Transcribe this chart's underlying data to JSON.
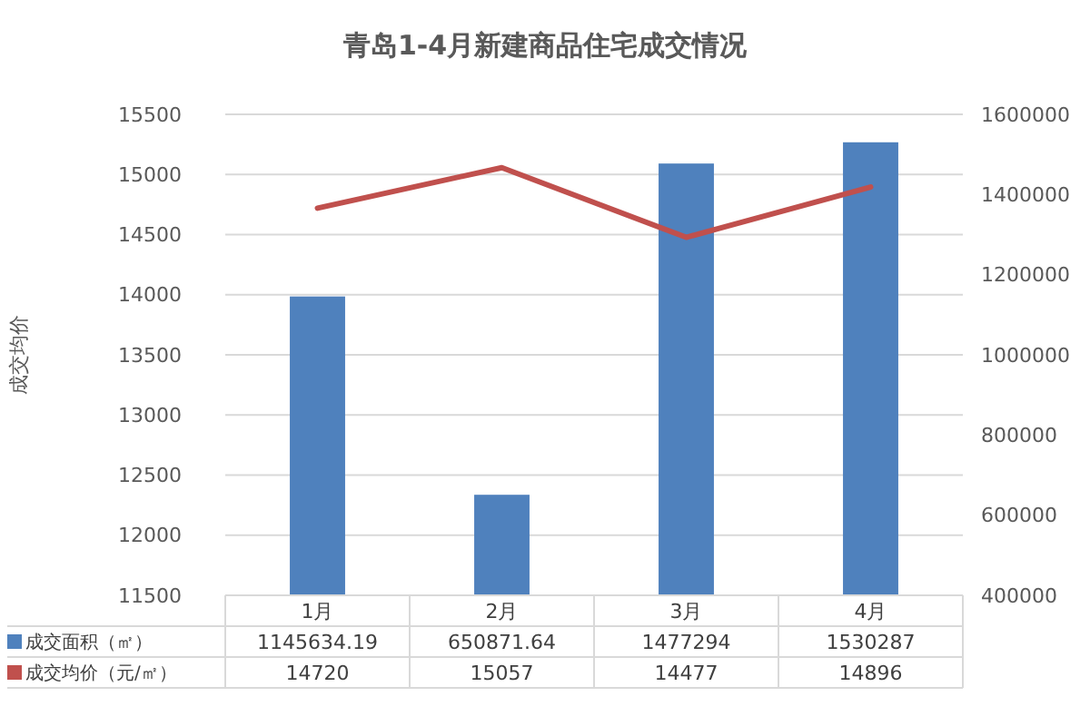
{
  "chart_data": {
    "type": "bar",
    "title": "青岛1-4月新建商品住宅成交情况",
    "ylabel": "成交均价",
    "categories": [
      "1月",
      "2月",
      "3月",
      "4月"
    ],
    "series": [
      {
        "name": "成交面积（㎡）",
        "axis": "y2",
        "color": "#4f81bd",
        "values": [
          1145634.19,
          650871.64,
          1477294,
          1530287
        ]
      },
      {
        "name": "成交均价（元/㎡）",
        "type": "line",
        "color": "#c0504d",
        "values": [
          14720,
          15057,
          14477,
          14896
        ]
      }
    ],
    "ylim": [
      11500,
      15500
    ],
    "yticks": [
      11500,
      12000,
      12500,
      13000,
      13500,
      14000,
      14500,
      15000,
      15500
    ],
    "y2lim": [
      400000,
      1600000
    ],
    "y2ticks": [
      400000,
      600000,
      800000,
      1000000,
      1200000,
      1400000,
      1600000
    ],
    "grid": "y",
    "data_labels": true,
    "legend": "bottom left",
    "marker": "none",
    "line_style": "solid"
  }
}
